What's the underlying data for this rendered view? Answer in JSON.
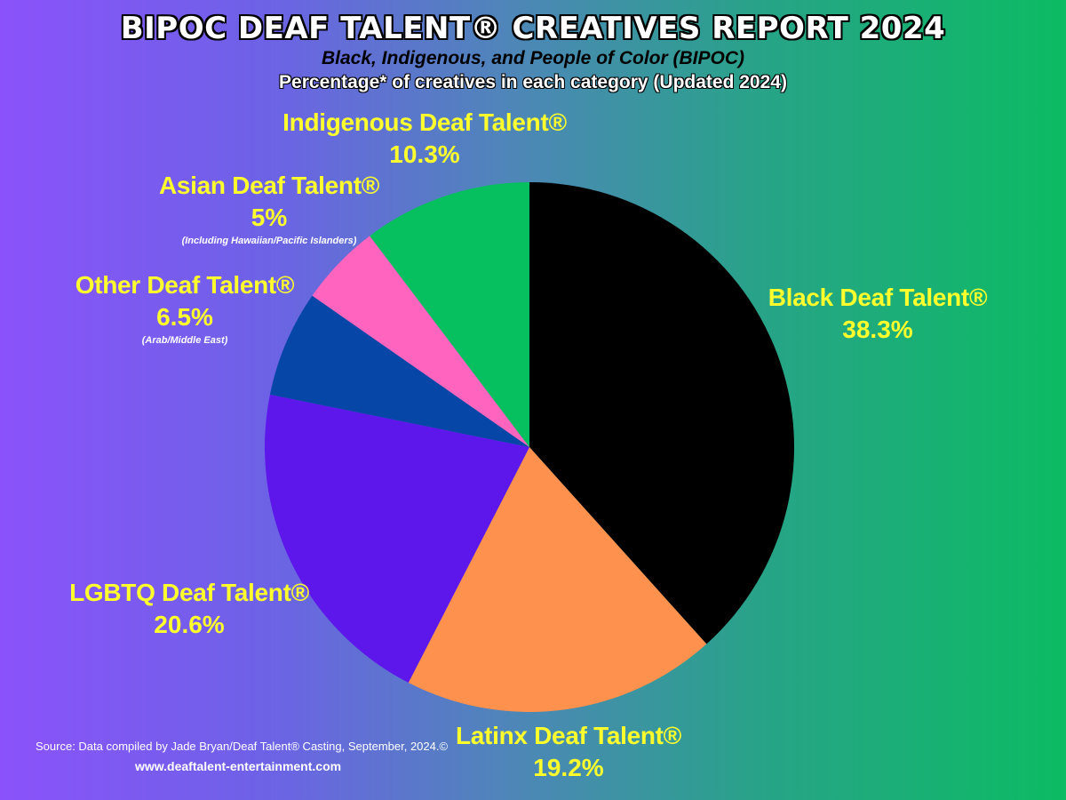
{
  "header": {
    "title": "BIPOC DEAF TALENT® CREATIVES REPORT 2024",
    "subtitle": "Black, Indigenous, and People of Color (BIPOC)",
    "subtitle2": "Percentage*  of creatives in each category (Updated 2024)"
  },
  "chart_data": {
    "type": "pie",
    "title": "BIPOC DEAF TALENT® CREATIVES REPORT 2024",
    "subtitle": "Percentage*  of creatives in each category (Updated 2024)",
    "slices": [
      {
        "label": "Black Deaf Talent®",
        "value": 38.3,
        "pct_label": "38.3%",
        "note": "",
        "color": "#000000"
      },
      {
        "label": "Latinx Deaf Talent®",
        "value": 19.2,
        "pct_label": "19.2%",
        "note": "",
        "color": "#fd914d"
      },
      {
        "label": "LGBTQ Deaf Talent®",
        "value": 20.6,
        "pct_label": "20.6%",
        "note": "",
        "color": "#5d17ea"
      },
      {
        "label": "Other Deaf Talent®",
        "value": 6.5,
        "pct_label": "6.5%",
        "note": "(Arab/Middle East)",
        "color": "#0646a6"
      },
      {
        "label": "Asian Deaf Talent®",
        "value": 5,
        "pct_label": "5%",
        "note": "(Including Hawaiian/Pacific Islanders)",
        "color": "#ff64be"
      },
      {
        "label": "Indigenous Deaf Talent®",
        "value": 10.3,
        "pct_label": "10.3%",
        "note": "",
        "color": "#06bf5f"
      }
    ],
    "start_angle": "12 o'clock",
    "direction": "clockwise",
    "legend": "none"
  },
  "footer": {
    "source": "Source: Data compiled by Jade Bryan/Deaf Talent® Casting, September, 2024.©",
    "website": "www.deaftalent-entertainment.com"
  }
}
